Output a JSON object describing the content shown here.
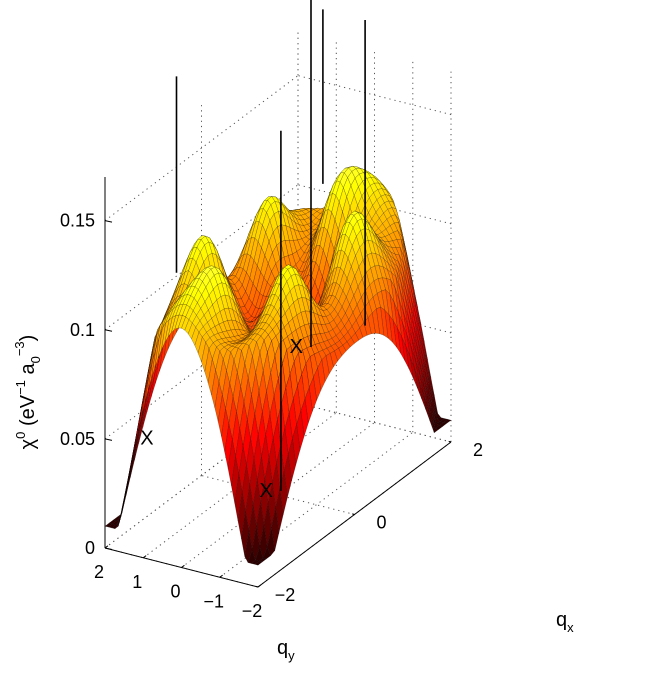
{
  "chart_data": {
    "type": "surface",
    "title": "",
    "zlabel": {
      "chi": "χ",
      "chi_sup": "0",
      "unit_open": " (eV",
      "ev_exp": "−1",
      "a": " a",
      "a_sub": "0",
      "a_exp": "−3",
      "unit_close": ")"
    },
    "xlabel": {
      "base": "q",
      "sub": "x"
    },
    "ylabel": {
      "base": "q",
      "sub": "y"
    },
    "xlim": [
      -2,
      2
    ],
    "ylim": [
      -2,
      2
    ],
    "zlim": [
      0,
      0.17
    ],
    "x_ticks": [
      {
        "v": -2,
        "label": "−2"
      },
      {
        "v": 0,
        "label": "0"
      },
      {
        "v": 2,
        "label": "2"
      }
    ],
    "y_ticks": [
      {
        "v": 2,
        "label": "2"
      },
      {
        "v": 1,
        "label": "1"
      },
      {
        "v": 0,
        "label": "0"
      },
      {
        "v": -1,
        "label": "−1"
      },
      {
        "v": -2,
        "label": "−2"
      }
    ],
    "z_ticks": [
      {
        "v": 0,
        "label": "0"
      },
      {
        "v": 0.05,
        "label": "0.05"
      },
      {
        "v": 0.1,
        "label": "0.1"
      },
      {
        "v": 0.15,
        "label": "0.15"
      }
    ],
    "grid": true,
    "colormap": "hot",
    "surface_description": {
      "center_value": 0.09,
      "ring_radius": 1.25,
      "ring_peak_value": 0.152,
      "edge_value": 0.1,
      "corner_value": 0.025,
      "ring_modulation_peaks": 6
    },
    "point_markers": [
      {
        "x": 1.2,
        "y": 0.65,
        "z_bottom": 0.045,
        "z_top": 0.22
      },
      {
        "x": 1.25,
        "y": -0.7,
        "z_bottom": 0.06,
        "z_top": 0.2
      },
      {
        "x": -0.1,
        "y": -1.3,
        "z_bottom": 0.15,
        "z_top": 0.23
      },
      {
        "x": 0.1,
        "y": 0.05,
        "z_bottom": 0.0,
        "z_top": 0.165
      },
      {
        "x": -1.35,
        "y": 0.95,
        "z_bottom": 0.12,
        "z_top": 0.21
      }
    ],
    "annotations": [
      {
        "text": "X",
        "x": 1.2,
        "y": 0.65,
        "z": 0.045
      },
      {
        "text": "X",
        "x": 0.1,
        "y": 0.05,
        "z": 0.0
      },
      {
        "text": "X",
        "x": -1.7,
        "y": 0.9,
        "z": 0.05
      }
    ],
    "colors": {
      "axis": "#000000",
      "grid": "#555555",
      "marker": "#000000",
      "mesh": "#000000"
    }
  }
}
